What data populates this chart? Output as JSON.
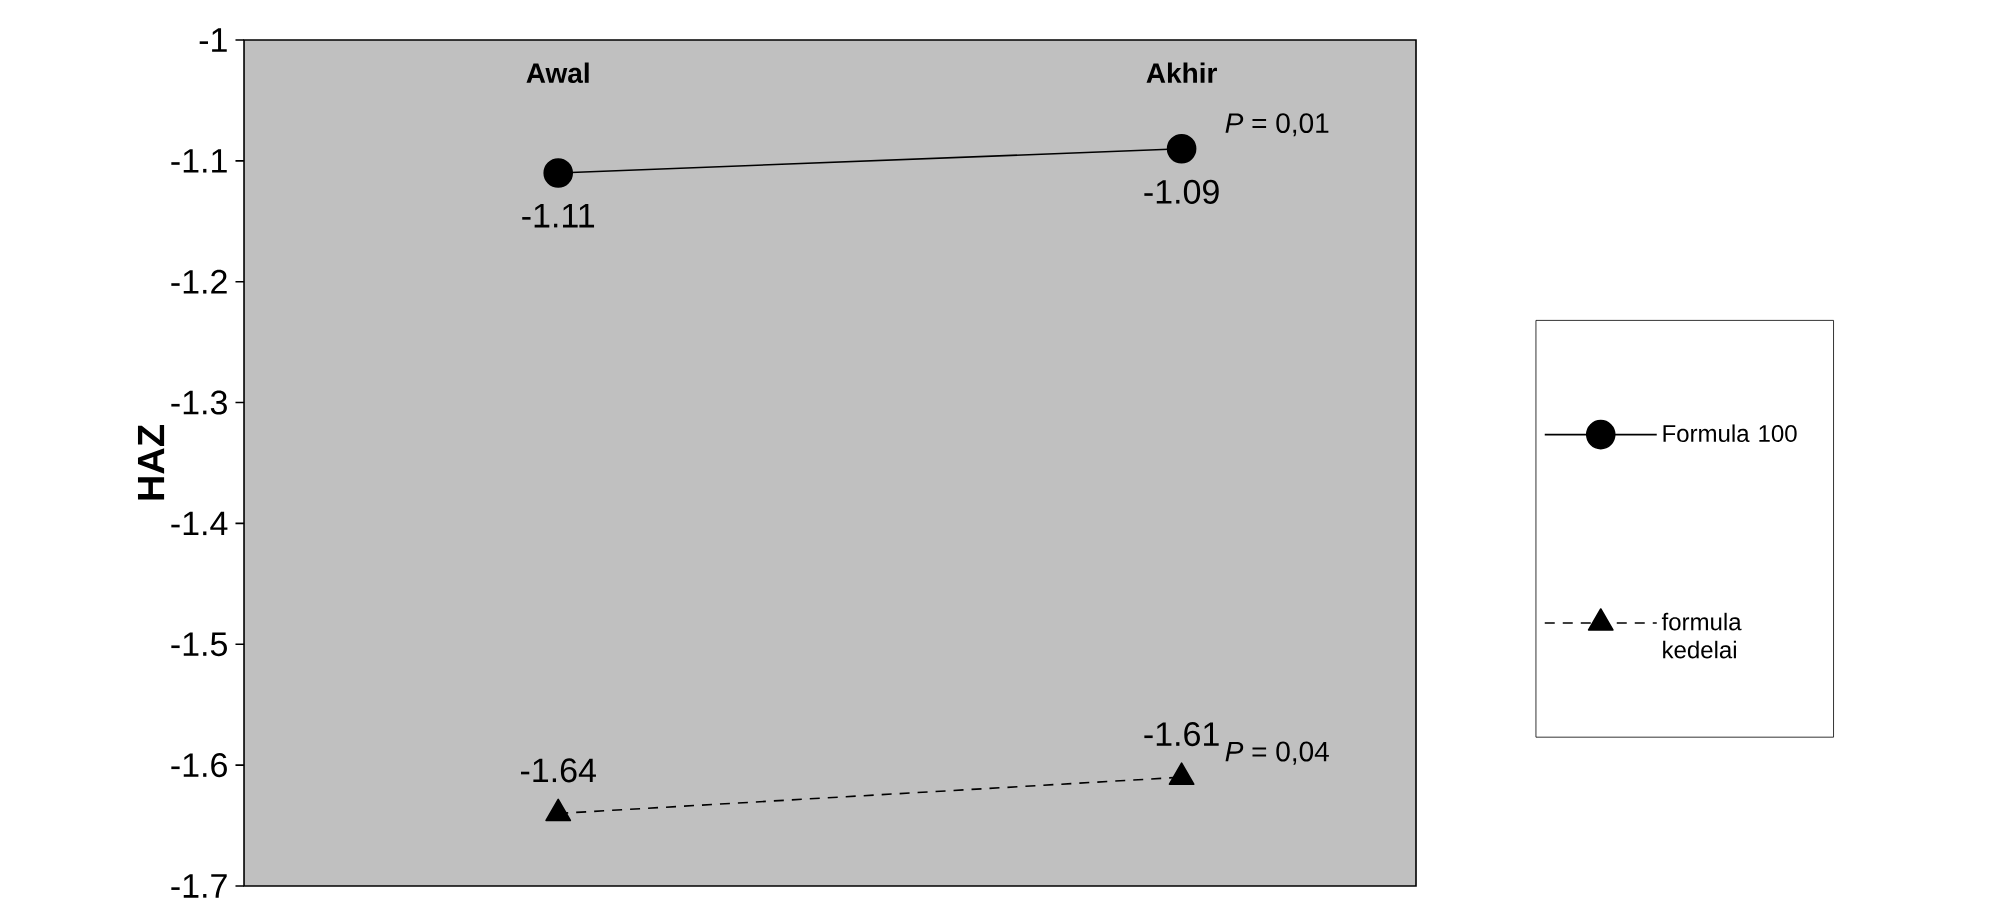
{
  "chart_data": {
    "type": "line",
    "ylabel": "HAZ",
    "categories": [
      "Awal",
      "Akhir"
    ],
    "series": [
      {
        "name": "Formula 100",
        "color": "#000000",
        "values": [
          -1.11,
          -1.09
        ],
        "marker": "circle",
        "line_style": "solid"
      },
      {
        "name": "formula kedelai",
        "color": "#000000",
        "values": [
          -1.64,
          -1.61
        ],
        "marker": "triangle",
        "line_style": "dashed"
      }
    ],
    "ylim": [
      -1.7,
      -1
    ],
    "yticks": [
      -1.7,
      -1.6,
      -1.5,
      -1.4,
      -1.3,
      -1.2,
      -1.1,
      -1
    ],
    "data_labels": true,
    "legend": "right",
    "grid": false,
    "annotations": [
      {
        "text": "*P* = 0,01",
        "x": "Akhir",
        "y": -1.09
      },
      {
        "text": "*P* = 0,04",
        "x": "Akhir",
        "y": -1.61
      }
    ]
  }
}
